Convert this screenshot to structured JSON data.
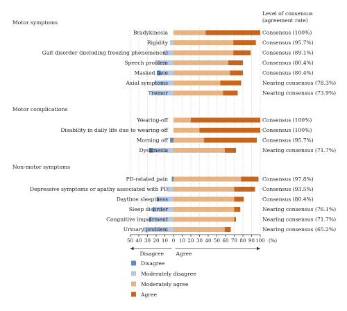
{
  "consensus_header": [
    "Level of consensus",
    "(agreement rate)"
  ],
  "colors": {
    "disagree": "#5b8bc8",
    "moderately_disagree": "#b4c9e8",
    "moderately_agree": "#e8b383",
    "agree": "#c8641c"
  },
  "axis": {
    "ticks": [
      "50",
      "40",
      "30",
      "20",
      "10",
      "0",
      "10",
      "20",
      "30",
      "40",
      "50",
      "60",
      "70",
      "80",
      "90",
      "100",
      "(%)"
    ],
    "disagree_label": "Disagree",
    "agree_label": "Agree"
  },
  "legend": [
    "Disagree",
    "Moderately disagree",
    "Moderately agree",
    "Agree"
  ],
  "chart_data": {
    "type": "bar",
    "orientation": "horizontal-diverging",
    "x_ticks_left": [
      50,
      40,
      30,
      20,
      10,
      0
    ],
    "x_ticks_right": [
      0,
      10,
      20,
      30,
      40,
      50,
      60,
      70,
      80,
      90,
      100
    ],
    "x_unit": "(%)",
    "series_names": [
      "Disagree",
      "Moderately disagree",
      "Moderately agree",
      "Agree"
    ],
    "groups": [
      {
        "title": "Motor symptoms",
        "items": [
          {
            "label": "Bradykinesia",
            "disagree": 0,
            "moderately_disagree": 0,
            "moderately_agree": 37,
            "agree": 63,
            "consensus": "Consensus (100%)"
          },
          {
            "label": "Rigidity",
            "disagree": 0,
            "moderately_disagree": 4,
            "moderately_agree": 69,
            "agree": 26,
            "consensus": "Consensus (95.7%)"
          },
          {
            "label": "Gait disorder (including freezing phenomenon)",
            "disagree": 0,
            "moderately_disagree": 11,
            "moderately_agree": 69,
            "agree": 20,
            "consensus": "Consensus (89.1%)"
          },
          {
            "label": "Speech problem",
            "disagree": 0,
            "moderately_disagree": 20,
            "moderately_agree": 63,
            "agree": 17,
            "consensus": "Consensus (80.4%)"
          },
          {
            "label": "Masked face",
            "disagree": 4,
            "moderately_disagree": 15,
            "moderately_agree": 65,
            "agree": 15,
            "consensus": "Consensus (80.4%)"
          },
          {
            "label": "Axial symptoms",
            "disagree": 0,
            "moderately_disagree": 22,
            "moderately_agree": 54,
            "agree": 24,
            "consensus": "Nearing consensus (78.3%)"
          },
          {
            "label": "Tremor",
            "disagree": 0,
            "moderately_disagree": 26,
            "moderately_agree": 57,
            "agree": 17,
            "consensus": "Nearing consensus (73.9%)"
          }
        ]
      },
      {
        "title": "Motor complications",
        "items": [
          {
            "label": "Wearing-off",
            "disagree": 0,
            "moderately_disagree": 0,
            "moderately_agree": 20,
            "agree": 80,
            "consensus": "Consensus (100%)"
          },
          {
            "label": "Disability in daily life due to wearing-off",
            "disagree": 0,
            "moderately_disagree": 0,
            "moderately_agree": 30,
            "agree": 70,
            "consensus": "Consensus (100%)"
          },
          {
            "label": "Morning off",
            "disagree": 4,
            "moderately_disagree": 0,
            "moderately_agree": 35,
            "agree": 61,
            "consensus": "Consensus (95.7%)"
          },
          {
            "label": "Dyskinesia",
            "disagree": 4,
            "moderately_disagree": 24,
            "moderately_agree": 59,
            "agree": 13,
            "consensus": "Nearing consensus (71.7%)"
          }
        ]
      },
      {
        "title": "Non-motor symptoms",
        "items": [
          {
            "label": "PD-related pain",
            "disagree": 2,
            "moderately_disagree": 0,
            "moderately_agree": 78,
            "agree": 20,
            "consensus": "Consensus (97.8%)"
          },
          {
            "label": "Depressive symptoms or apathy associated with PD",
            "disagree": 0,
            "moderately_disagree": 7,
            "moderately_agree": 70,
            "agree": 24,
            "consensus": "Consensus (93.5%)"
          },
          {
            "label": "Daytime sleepiness",
            "disagree": 2,
            "moderately_disagree": 17,
            "moderately_agree": 70,
            "agree": 11,
            "consensus": "Consensus (80.4%)"
          },
          {
            "label": "Sleep disorder",
            "disagree": 2,
            "moderately_disagree": 22,
            "moderately_agree": 70,
            "agree": 7,
            "consensus": "Nearing consensus (76.1%)"
          },
          {
            "label": "Congnitive impairment",
            "disagree": 2,
            "moderately_disagree": 26,
            "moderately_agree": 70,
            "agree": 2,
            "consensus": "Nearing consensus (71.7%)"
          },
          {
            "label": "Urinary problem",
            "disagree": 0,
            "moderately_disagree": 35,
            "moderately_agree": 59,
            "agree": 7,
            "consensus": "Nearing consensus (65.2%)"
          }
        ]
      }
    ]
  }
}
